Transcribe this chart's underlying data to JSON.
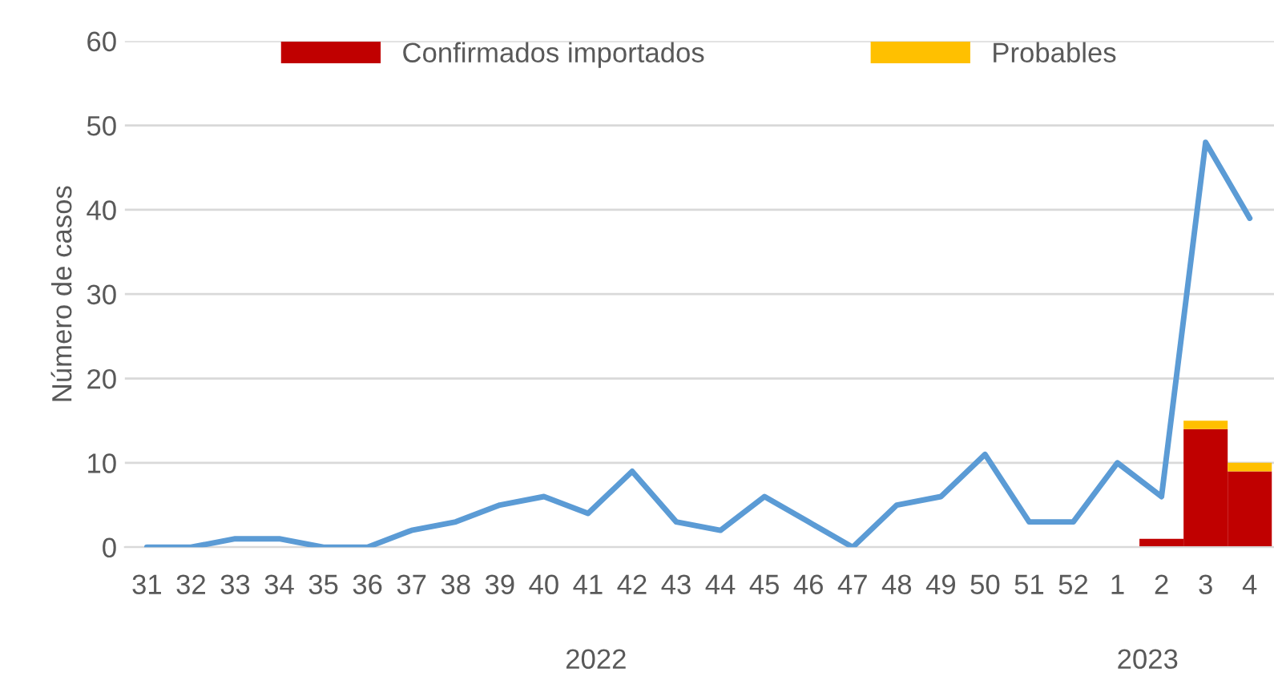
{
  "chart_data": {
    "type": "bar",
    "ylabel": "Número de casos",
    "categories": [
      "31",
      "32",
      "33",
      "34",
      "35",
      "36",
      "37",
      "38",
      "39",
      "40",
      "41",
      "42",
      "43",
      "44",
      "45",
      "46",
      "47",
      "48",
      "49",
      "50",
      "51",
      "52",
      "1",
      "2",
      "3",
      "4"
    ],
    "stacked": true,
    "series": [
      {
        "name": "Confirmados importados",
        "color": "#c00000",
        "values": [
          null,
          null,
          null,
          null,
          null,
          null,
          null,
          null,
          null,
          null,
          null,
          null,
          null,
          null,
          null,
          null,
          null,
          null,
          null,
          null,
          null,
          null,
          null,
          1,
          14,
          9
        ]
      },
      {
        "name": "Probables",
        "color": "#ffc000",
        "values": [
          null,
          null,
          null,
          null,
          null,
          null,
          null,
          null,
          null,
          null,
          null,
          null,
          null,
          null,
          null,
          null,
          null,
          null,
          null,
          null,
          null,
          null,
          null,
          null,
          1,
          1
        ]
      },
      {
        "type": "line",
        "color": "#5b9bd5",
        "values": [
          0,
          0,
          1,
          1,
          0,
          0,
          2,
          3,
          5,
          6,
          4,
          9,
          3,
          2,
          6,
          3,
          0,
          5,
          6,
          11,
          3,
          3,
          10,
          6,
          48,
          39
        ]
      }
    ],
    "ylim": [
      0,
      60
    ],
    "yticks": [
      0,
      10,
      20,
      30,
      40,
      50,
      60
    ],
    "grid": "y",
    "legend": "top",
    "annotations": [
      "2022",
      "2023"
    ]
  }
}
